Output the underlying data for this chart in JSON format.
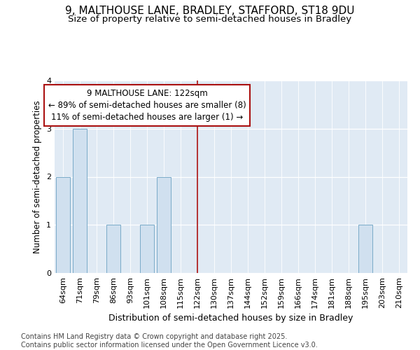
{
  "title": "9, MALTHOUSE LANE, BRADLEY, STAFFORD, ST18 9DU",
  "subtitle": "Size of property relative to semi-detached houses in Bradley",
  "xlabel": "Distribution of semi-detached houses by size in Bradley",
  "ylabel": "Number of semi-detached properties",
  "categories": [
    "64sqm",
    "71sqm",
    "79sqm",
    "86sqm",
    "93sqm",
    "101sqm",
    "108sqm",
    "115sqm",
    "122sqm",
    "130sqm",
    "137sqm",
    "144sqm",
    "152sqm",
    "159sqm",
    "166sqm",
    "174sqm",
    "181sqm",
    "188sqm",
    "195sqm",
    "203sqm",
    "210sqm"
  ],
  "values": [
    2,
    3,
    0,
    1,
    0,
    1,
    2,
    0,
    0,
    0,
    0,
    0,
    0,
    0,
    0,
    0,
    0,
    0,
    1,
    0,
    0
  ],
  "bar_color": "#d0e0ef",
  "bar_edgecolor": "#7aaac8",
  "vline_x_idx": 8,
  "vline_color": "#aa1111",
  "annotation_text": "9 MALTHOUSE LANE: 122sqm\n← 89% of semi-detached houses are smaller (8)\n11% of semi-detached houses are larger (1) →",
  "annotation_box_facecolor": "#ffffff",
  "annotation_box_edgecolor": "#aa1111",
  "ylim": [
    0,
    4
  ],
  "yticks": [
    0,
    1,
    2,
    3,
    4
  ],
  "fig_background": "#ffffff",
  "plot_background": "#e0eaf4",
  "footer_text": "Contains HM Land Registry data © Crown copyright and database right 2025.\nContains public sector information licensed under the Open Government Licence v3.0.",
  "title_fontsize": 11,
  "subtitle_fontsize": 9.5,
  "xlabel_fontsize": 9,
  "ylabel_fontsize": 8.5,
  "tick_fontsize": 8,
  "footer_fontsize": 7,
  "ann_fontsize": 8.5
}
